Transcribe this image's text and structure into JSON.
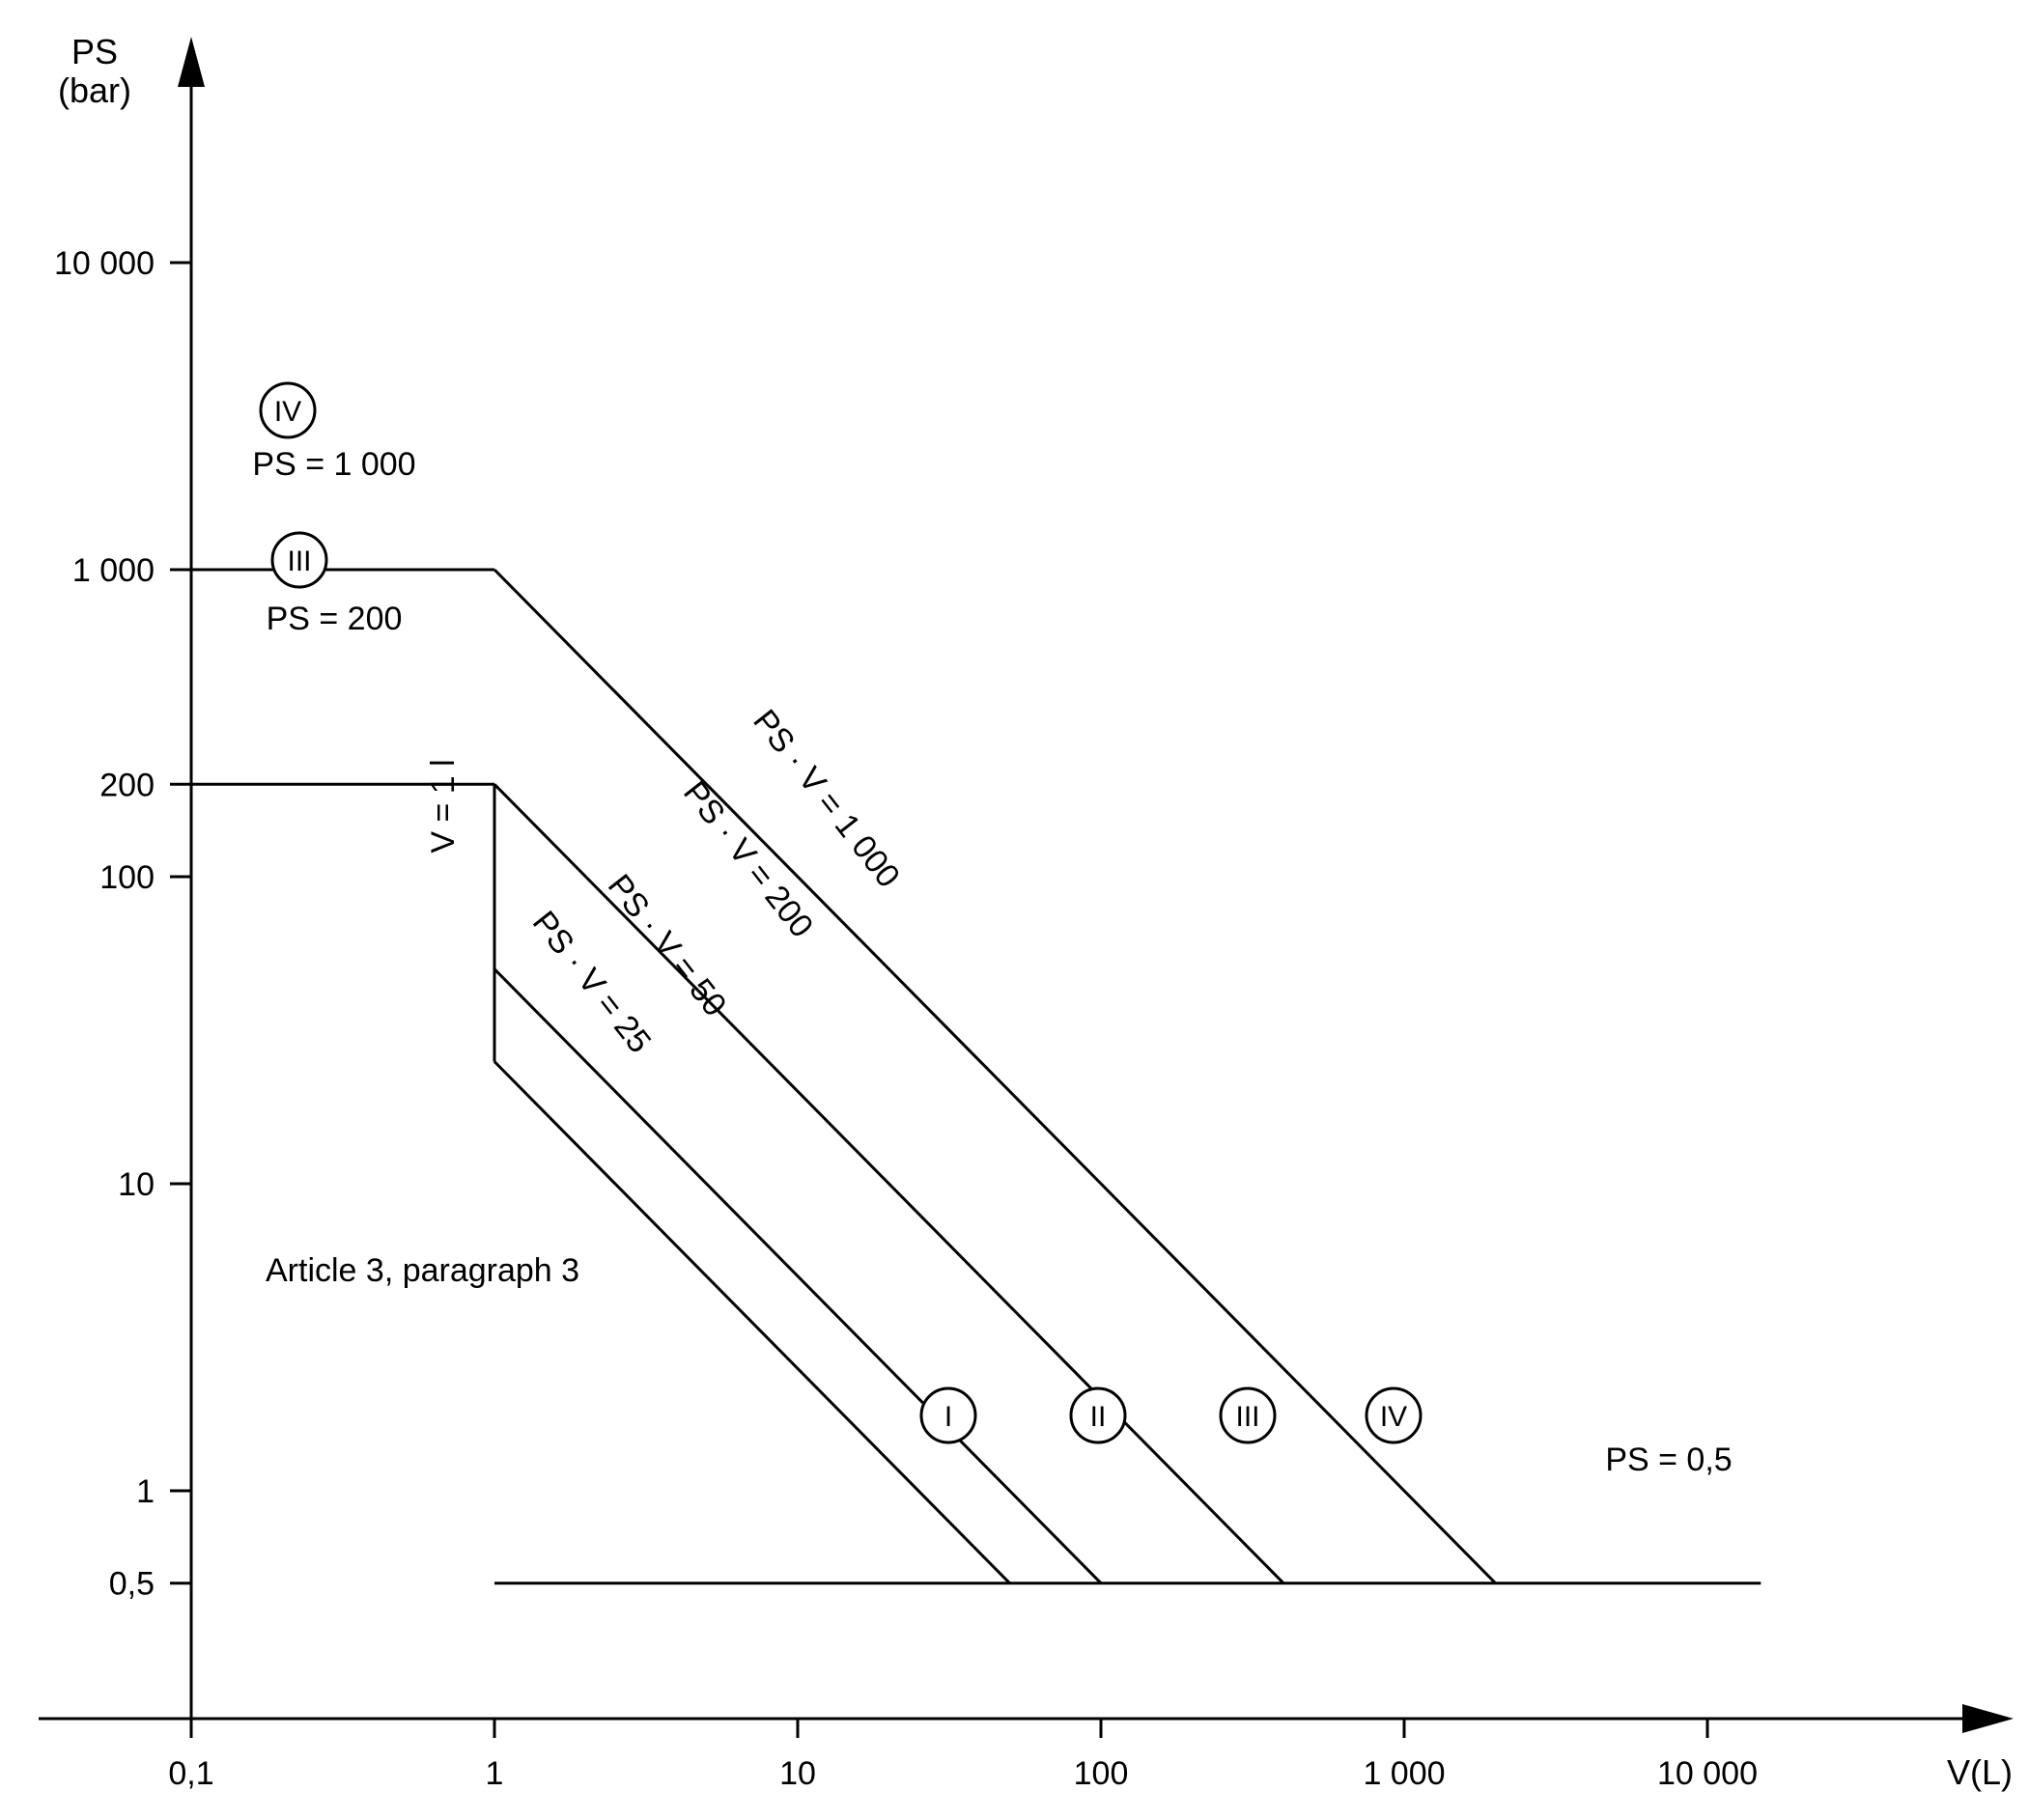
{
  "chart_data": {
    "type": "line",
    "title": "",
    "x_axis": {
      "label": "V(L)",
      "scale": "log",
      "range": [
        0.1,
        10000
      ],
      "ticks": [
        {
          "value": 0.1,
          "label": "0,1"
        },
        {
          "value": 1,
          "label": "1"
        },
        {
          "value": 10,
          "label": "10"
        },
        {
          "value": 100,
          "label": "100"
        },
        {
          "value": 1000,
          "label": "1 000"
        },
        {
          "value": 10000,
          "label": "10 000"
        }
      ]
    },
    "y_axis": {
      "label_lines": [
        "PS",
        "(bar)"
      ],
      "scale": "log",
      "range": [
        0.5,
        10000
      ],
      "ticks": [
        {
          "value": 10000,
          "label": "10 000"
        },
        {
          "value": 1000,
          "label": "1 000"
        },
        {
          "value": 200,
          "label": "200"
        },
        {
          "value": 100,
          "label": "100"
        },
        {
          "value": 10,
          "label": "10"
        },
        {
          "value": 1,
          "label": "1"
        },
        {
          "value": 0.5,
          "label": "0,5"
        }
      ]
    },
    "series": [
      {
        "name": "PS = 1 000",
        "category": "IV",
        "points": [
          [
            0.1,
            1000
          ],
          [
            1,
            1000
          ]
        ]
      },
      {
        "name": "PS · V = 1 000",
        "category": "IV",
        "points": [
          [
            1,
            1000
          ],
          [
            2000,
            0.5
          ]
        ]
      },
      {
        "name": "PS = 200",
        "category": "III",
        "points": [
          [
            0.1,
            200
          ],
          [
            1,
            200
          ]
        ]
      },
      {
        "name": "PS · V = 200",
        "category": "III",
        "points": [
          [
            1,
            200
          ],
          [
            400,
            0.5
          ]
        ]
      },
      {
        "name": "V = 1 l",
        "points": [
          [
            1,
            200
          ],
          [
            1,
            25
          ]
        ]
      },
      {
        "name": "PS · V = 50",
        "category": "II",
        "points": [
          [
            1,
            50
          ],
          [
            100,
            0.5
          ]
        ]
      },
      {
        "name": "PS · V = 25",
        "category": "I",
        "points": [
          [
            1,
            25
          ],
          [
            50,
            0.5
          ]
        ]
      },
      {
        "name": "PS = 0,5",
        "points": [
          [
            1,
            0.5
          ],
          [
            15000,
            0.5
          ]
        ]
      }
    ],
    "category_markers": [
      "I",
      "II",
      "III",
      "IV"
    ],
    "annotations": [
      {
        "text": "Article 3, paragraph 3"
      }
    ],
    "grid": false
  }
}
